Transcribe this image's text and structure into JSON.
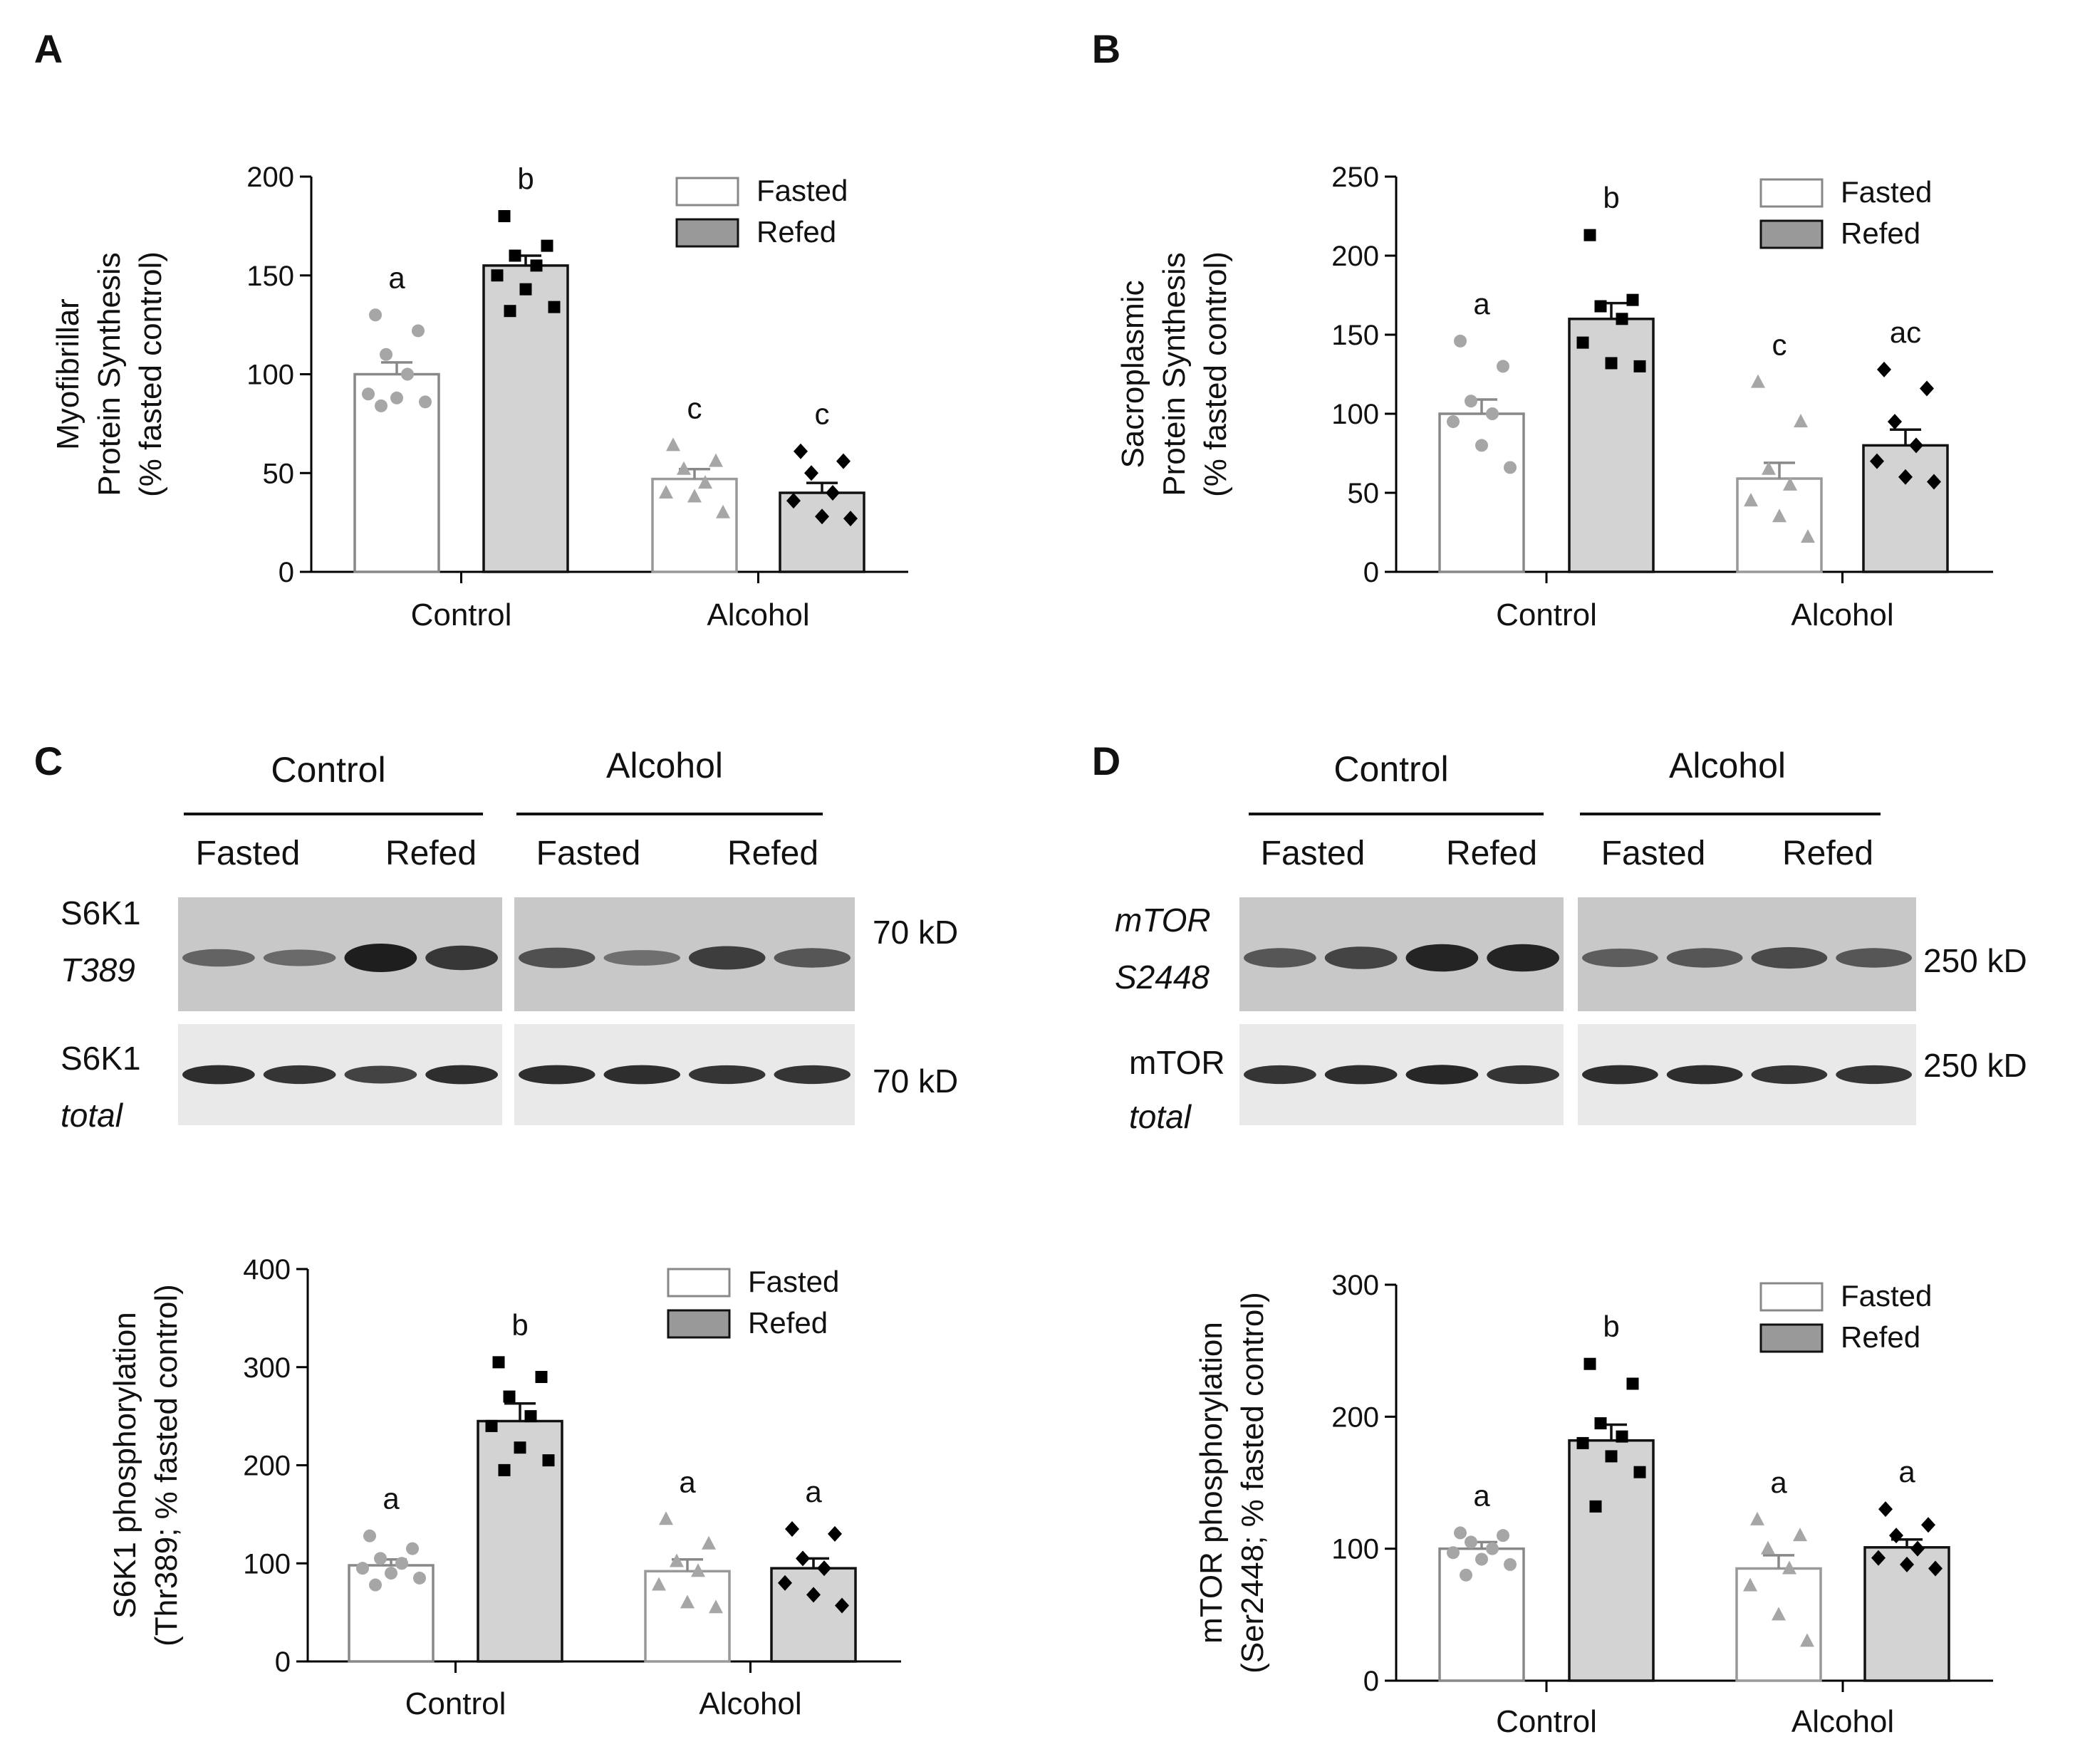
{
  "legend": {
    "fasted": "Fasted",
    "refed": "Refed"
  },
  "colors": {
    "fasted_fill": "#ffffff",
    "refed_fill": "#d3d3d3",
    "axis": "#000000",
    "control_fasted_points": "#a6a6a6",
    "alcohol_fasted_points": "#a6a6a6",
    "refed_points": "#000000",
    "blot_bg": "#cfcfcf",
    "band": "#151515"
  },
  "chart_data": [
    {
      "panel": "A",
      "type": "bar",
      "ylabel": [
        "Myofibrillar",
        "Protein Synthesis",
        "(% fasted control)"
      ],
      "categories": [
        "Control",
        "Alcohol"
      ],
      "ylim": [
        0,
        200
      ],
      "yticks": [
        0,
        50,
        100,
        150,
        200
      ],
      "series": [
        {
          "name": "Fasted",
          "values": [
            100,
            47
          ],
          "sem": [
            6,
            5
          ],
          "letters": [
            "a",
            "c"
          ],
          "points": [
            [
              130,
              122,
              110,
              100,
              90,
              88,
              86,
              84
            ],
            [
              64,
              56,
              52,
              45,
              40,
              38,
              30
            ]
          ]
        },
        {
          "name": "Refed",
          "values": [
            155,
            40
          ],
          "sem": [
            5,
            5
          ],
          "letters": [
            "b",
            "c"
          ],
          "points": [
            [
              180,
              165,
              160,
              155,
              150,
              143,
              134,
              132
            ],
            [
              61,
              56,
              50,
              40,
              36,
              28,
              27
            ]
          ]
        }
      ]
    },
    {
      "panel": "B",
      "type": "bar",
      "ylabel": [
        "Sacroplasmic",
        "Protein Synthesis",
        "(% fasted control)"
      ],
      "categories": [
        "Control",
        "Alcohol"
      ],
      "ylim": [
        0,
        250
      ],
      "yticks": [
        0,
        50,
        100,
        150,
        200,
        250
      ],
      "series": [
        {
          "name": "Fasted",
          "values": [
            100,
            59
          ],
          "sem": [
            9,
            10
          ],
          "letters": [
            "a",
            "c"
          ],
          "points": [
            [
              146,
              130,
              108,
              100,
              95,
              80,
              66
            ],
            [
              120,
              95,
              65,
              55,
              45,
              35,
              22
            ]
          ]
        },
        {
          "name": "Refed",
          "values": [
            160,
            80
          ],
          "sem": [
            10,
            10
          ],
          "letters": [
            "b",
            "ac"
          ],
          "points": [
            [
              213,
              172,
              168,
              160,
              145,
              132,
              130
            ],
            [
              128,
              116,
              95,
              80,
              70,
              60,
              57
            ]
          ]
        }
      ]
    },
    {
      "panel": "C",
      "type": "bar",
      "ylabel": [
        "S6K1 phosphorylation",
        "(Thr389; % fasted control)"
      ],
      "categories": [
        "Control",
        "Alcohol"
      ],
      "ylim": [
        0,
        400
      ],
      "yticks": [
        0,
        100,
        200,
        300,
        400
      ],
      "series": [
        {
          "name": "Fasted",
          "values": [
            98,
            92
          ],
          "sem": [
            6,
            12
          ],
          "letters": [
            "a",
            "a"
          ],
          "points": [
            [
              128,
              115,
              105,
              100,
              95,
              90,
              85,
              78
            ],
            [
              145,
              120,
              102,
              92,
              78,
              60,
              55
            ]
          ]
        },
        {
          "name": "Refed",
          "values": [
            245,
            95
          ],
          "sem": [
            18,
            10
          ],
          "letters": [
            "b",
            "a"
          ],
          "points": [
            [
              305,
              290,
              270,
              250,
              240,
              218,
              205,
              195
            ],
            [
              135,
              130,
              105,
              95,
              80,
              68,
              57
            ]
          ]
        }
      ]
    },
    {
      "panel": "D",
      "type": "bar",
      "ylabel": [
        "mTOR phosphorylation",
        "(Ser2448; % fasted control)"
      ],
      "categories": [
        "Control",
        "Alcohol"
      ],
      "ylim": [
        0,
        300
      ],
      "yticks": [
        0,
        100,
        200,
        300
      ],
      "series": [
        {
          "name": "Fasted",
          "values": [
            100,
            85
          ],
          "sem": [
            5,
            10
          ],
          "letters": [
            "a",
            "a"
          ],
          "points": [
            [
              112,
              110,
              105,
              100,
              97,
              92,
              88,
              80
            ],
            [
              122,
              110,
              100,
              85,
              72,
              50,
              30
            ]
          ]
        },
        {
          "name": "Refed",
          "values": [
            182,
            101
          ],
          "sem": [
            12,
            6
          ],
          "letters": [
            "b",
            "a"
          ],
          "points": [
            [
              240,
              225,
              195,
              185,
              180,
              170,
              158,
              132
            ],
            [
              130,
              118,
              110,
              100,
              93,
              88,
              85
            ]
          ]
        }
      ]
    }
  ],
  "blots": {
    "C": {
      "groups": [
        "Control",
        "Alcohol"
      ],
      "conditions": [
        "Fasted",
        "Refed",
        "Fasted",
        "Refed"
      ],
      "row1_label": [
        "S6K1",
        "T389"
      ],
      "row1_kd": "70 kD",
      "row2_label": [
        "S6K1",
        "total"
      ],
      "row2_kd": "70 kD",
      "row1_intensity": [
        0.45,
        0.4,
        1.0,
        0.8,
        0.6,
        0.35,
        0.75,
        0.55
      ],
      "row2_intensity": [
        0.9,
        0.85,
        0.75,
        0.9,
        0.9,
        0.9,
        0.85,
        0.85
      ]
    },
    "D": {
      "groups": [
        "Control",
        "Alcohol"
      ],
      "conditions": [
        "Fasted",
        "Refed",
        "Fasted",
        "Refed"
      ],
      "row1_label": [
        "mTOR",
        "S2448"
      ],
      "row1_kd": "250 kD",
      "row2_label": [
        "mTOR",
        "total"
      ],
      "row2_kd": "250 kD",
      "row1_intensity": [
        0.55,
        0.7,
        0.95,
        0.95,
        0.5,
        0.55,
        0.65,
        0.55
      ],
      "row2_intensity": [
        0.85,
        0.9,
        0.95,
        0.85,
        0.9,
        0.9,
        0.85,
        0.85
      ]
    }
  }
}
